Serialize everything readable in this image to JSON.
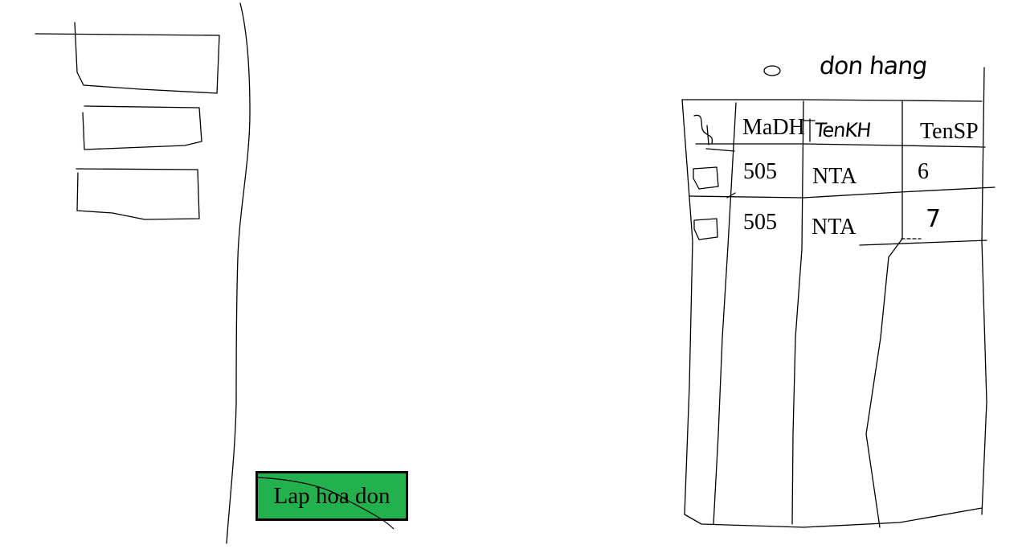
{
  "left_panel": {
    "fields": [
      {
        "label": "input field 1"
      },
      {
        "label": "input field 2"
      },
      {
        "label": "input field 3"
      }
    ]
  },
  "main": {
    "action_button_label": "Lap hoa don"
  },
  "orders_table": {
    "title": "don hang",
    "title_icon": "circle-radio-icon",
    "columns": [
      "St",
      "MaDH",
      "TenKH",
      "TenSP"
    ],
    "rows": [
      {
        "checkbox": "checkbox-icon",
        "MaDH": "505",
        "TenKH": "NTA",
        "TenSP": "6"
      },
      {
        "checkbox": "checkbox-icon",
        "MaDH": "505",
        "TenKH": "NTA",
        "TenSP": "7"
      }
    ]
  },
  "colors": {
    "button_fill": "#22b14c",
    "ink": "#000000",
    "background": "#ffffff"
  }
}
